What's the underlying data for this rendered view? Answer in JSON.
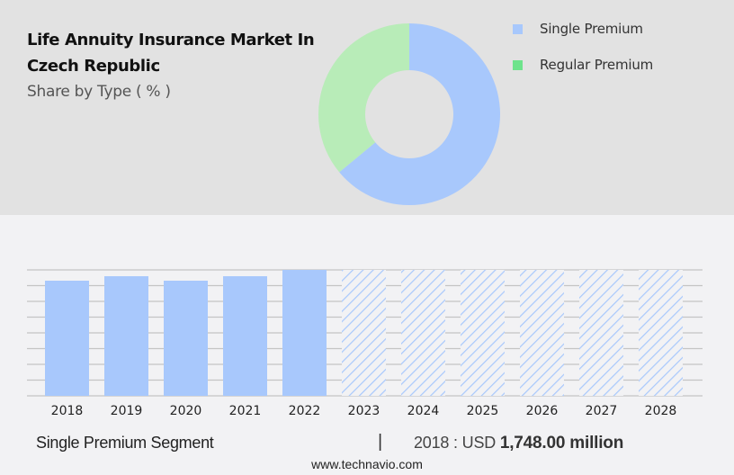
{
  "header": {
    "title": "Life Annuity Insurance Market In Czech Republic",
    "subtitle": "Share by Type ( % )"
  },
  "legend": [
    {
      "label": "Single Premium",
      "color": "#a8c8fc"
    },
    {
      "label": "Regular Premium",
      "color": "#6ee38c"
    }
  ],
  "footer": {
    "segment_label": "Single Premium Segment",
    "separator": "|",
    "year_prefix": "2018 : USD ",
    "value": "1,748.00 million",
    "source": "www.technavio.com"
  },
  "colors": {
    "single_premium": "#a8c8fc",
    "regular_premium_donut": "#b8ecb8",
    "regular_premium_legend": "#6ee38c",
    "top_bg": "#e2e2e2",
    "bottom_bg": "#f2f2f4",
    "gridline": "#c4c4c4"
  },
  "chart_data": [
    {
      "type": "pie",
      "variant": "donut",
      "title": "Life Annuity Insurance Market In Czech Republic",
      "subtitle": "Share by Type ( % )",
      "categories": [
        "Single Premium",
        "Regular Premium"
      ],
      "values": [
        64,
        36
      ],
      "colors": [
        "#a8c8fc",
        "#b8ecb8"
      ],
      "legend_position": "right"
    },
    {
      "type": "bar",
      "title": "Single Premium Segment",
      "categories": [
        "2018",
        "2019",
        "2020",
        "2021",
        "2022",
        "2023",
        "2024",
        "2025",
        "2026",
        "2027",
        "2028"
      ],
      "series": [
        {
          "name": "Single Premium (USD million)",
          "values": [
            1748,
            1816,
            1748,
            1816,
            1912,
            1912,
            1912,
            1912,
            1912,
            1912,
            1912
          ],
          "forecast_from": "2023",
          "forecast_style": "hatched"
        }
      ],
      "xlabel": "",
      "ylabel": "",
      "ylim": [
        0,
        1912
      ],
      "grid": true,
      "gridlines": 9,
      "annotation": "2018 : USD 1,748.00 million"
    }
  ]
}
